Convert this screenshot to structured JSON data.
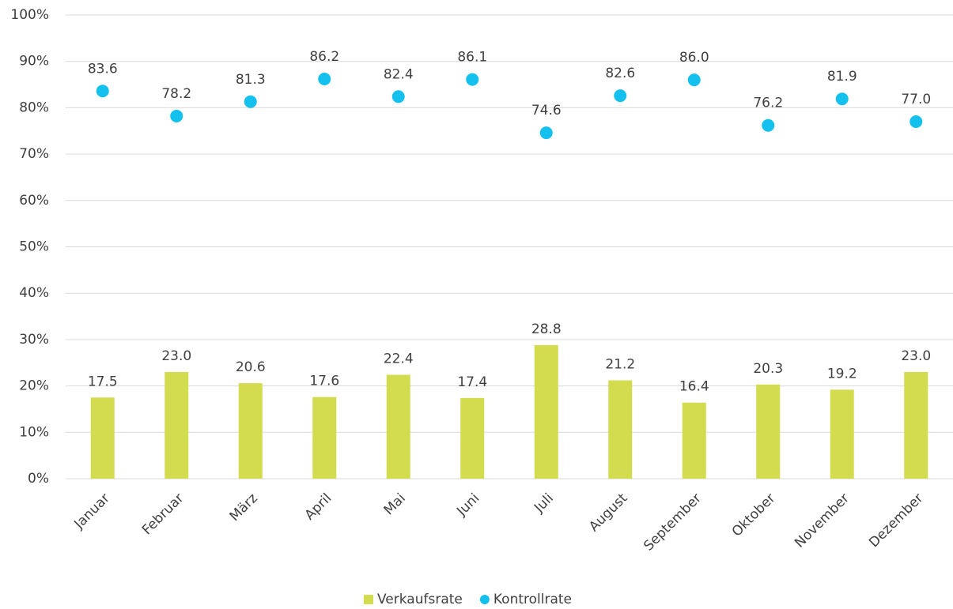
{
  "chart_data": {
    "type": "bar",
    "categories": [
      "Januar",
      "Februar",
      "März",
      "April",
      "Mai",
      "Juni",
      "Juli",
      "August",
      "September",
      "Oktober",
      "November",
      "Dezember"
    ],
    "series": [
      {
        "name": "Verkaufsrate",
        "type": "bar",
        "color": "#d2dc4e",
        "values": [
          17.5,
          23.0,
          20.6,
          17.6,
          22.4,
          17.4,
          28.8,
          21.2,
          16.4,
          20.3,
          19.2,
          23.0
        ],
        "value_labels": [
          "17.5",
          "23.0",
          "20.6",
          "17.6",
          "22.4",
          "17.4",
          "28.8",
          "21.2",
          "16.4",
          "20.3",
          "19.2",
          "23.0"
        ]
      },
      {
        "name": "Kontrollrate",
        "type": "scatter",
        "color": "#14c1ee",
        "values": [
          83.6,
          78.2,
          81.3,
          86.2,
          82.4,
          86.1,
          74.6,
          82.6,
          86.0,
          76.2,
          81.9,
          77.0
        ],
        "value_labels": [
          "83.6",
          "78.2",
          "81.3",
          "86.2",
          "82.4",
          "86.1",
          "74.6",
          "82.6",
          "86.0",
          "76.2",
          "81.9",
          "77.0"
        ]
      }
    ],
    "ylim": [
      0,
      100
    ],
    "yticks": [
      {
        "value": 0,
        "label": "0%"
      },
      {
        "value": 10,
        "label": "10%"
      },
      {
        "value": 20,
        "label": "20%"
      },
      {
        "value": 30,
        "label": "30%"
      },
      {
        "value": 40,
        "label": "40%"
      },
      {
        "value": 50,
        "label": "50%"
      },
      {
        "value": 60,
        "label": "60%"
      },
      {
        "value": 70,
        "label": "70%"
      },
      {
        "value": 80,
        "label": "80%"
      },
      {
        "value": 90,
        "label": "90%"
      },
      {
        "value": 100,
        "label": "100%"
      }
    ],
    "grid": true,
    "legend": "bottom"
  }
}
